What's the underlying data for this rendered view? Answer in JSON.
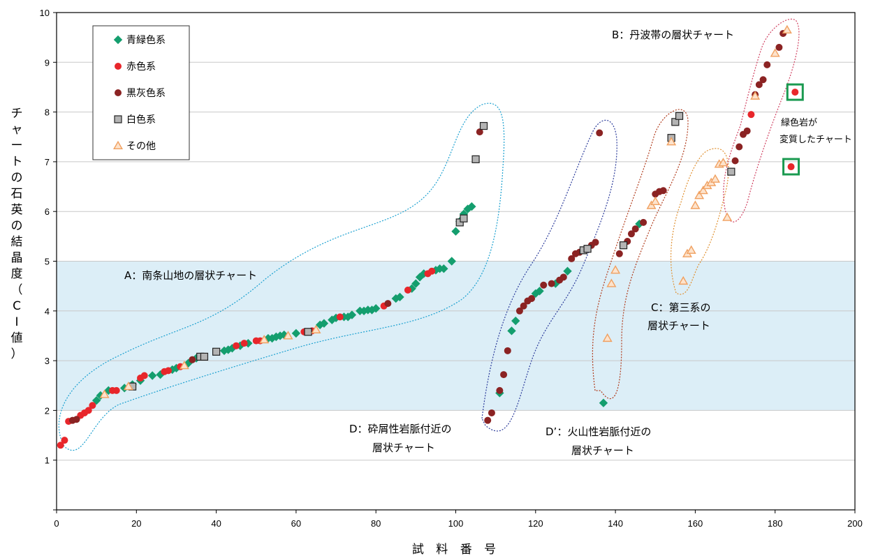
{
  "chart_data": {
    "type": "scatter",
    "xlabel": "試 料 番 号",
    "ylabel": "チャートの石英の結晶度（CI値）",
    "xlim": [
      0,
      200
    ],
    "ylim": [
      0,
      10
    ],
    "x_ticks": [
      "0",
      "20",
      "40",
      "60",
      "80",
      "100",
      "120",
      "140",
      "160",
      "180",
      "200"
    ],
    "y_ticks": [
      "1",
      "2",
      "3",
      "4",
      "5",
      "6",
      "7",
      "8",
      "9",
      "10"
    ],
    "grid": true,
    "legend_position": "top-left",
    "shaded_band": {
      "y_from": 2,
      "y_to": 5,
      "color": "#dceef7"
    },
    "series": [
      {
        "name": "青緑色系",
        "marker": "diamond",
        "color": "#149e6e",
        "points": [
          [
            10,
            2.2
          ],
          [
            11,
            2.3
          ],
          [
            13,
            2.4
          ],
          [
            17,
            2.45
          ],
          [
            19,
            2.52
          ],
          [
            21,
            2.6
          ],
          [
            24,
            2.7
          ],
          [
            26,
            2.72
          ],
          [
            29,
            2.82
          ],
          [
            30,
            2.85
          ],
          [
            33,
            2.95
          ],
          [
            35,
            3.05
          ],
          [
            42,
            3.2
          ],
          [
            43,
            3.22
          ],
          [
            44,
            3.25
          ],
          [
            46,
            3.3
          ],
          [
            48,
            3.35
          ],
          [
            53,
            3.45
          ],
          [
            54,
            3.45
          ],
          [
            55,
            3.48
          ],
          [
            56,
            3.5
          ],
          [
            57,
            3.52
          ],
          [
            60,
            3.55
          ],
          [
            66,
            3.72
          ],
          [
            67,
            3.75
          ],
          [
            69,
            3.82
          ],
          [
            70,
            3.86
          ],
          [
            72,
            3.88
          ],
          [
            73,
            3.88
          ],
          [
            74,
            3.92
          ],
          [
            76,
            4.0
          ],
          [
            77,
            4.0
          ],
          [
            78,
            4.02
          ],
          [
            79,
            4.02
          ],
          [
            80,
            4.05
          ],
          [
            85,
            4.25
          ],
          [
            86,
            4.28
          ],
          [
            89,
            4.45
          ],
          [
            90,
            4.55
          ],
          [
            91,
            4.68
          ],
          [
            92,
            4.75
          ],
          [
            95,
            4.82
          ],
          [
            96,
            4.85
          ],
          [
            97,
            4.85
          ],
          [
            99,
            5.0
          ],
          [
            100,
            5.6
          ],
          [
            101,
            5.8
          ],
          [
            102,
            5.95
          ],
          [
            103,
            6.05
          ],
          [
            104,
            6.1
          ],
          [
            111,
            2.35
          ],
          [
            114,
            3.6
          ],
          [
            115,
            3.8
          ],
          [
            120,
            4.35
          ],
          [
            121,
            4.4
          ],
          [
            125,
            4.55
          ],
          [
            128,
            4.8
          ],
          [
            137,
            2.15
          ],
          [
            146,
            5.75
          ]
        ]
      },
      {
        "name": "赤色系",
        "marker": "circle",
        "color": "#e8262b",
        "points": [
          [
            1,
            1.3
          ],
          [
            2,
            1.4
          ],
          [
            3,
            1.78
          ],
          [
            6,
            1.9
          ],
          [
            7,
            1.95
          ],
          [
            8,
            2.0
          ],
          [
            9,
            2.1
          ],
          [
            14,
            2.4
          ],
          [
            15,
            2.4
          ],
          [
            21,
            2.65
          ],
          [
            22,
            2.7
          ],
          [
            27,
            2.78
          ],
          [
            28,
            2.8
          ],
          [
            31,
            2.88
          ],
          [
            45,
            3.3
          ],
          [
            47,
            3.35
          ],
          [
            50,
            3.4
          ],
          [
            51,
            3.4
          ],
          [
            62,
            3.58
          ],
          [
            64,
            3.6
          ],
          [
            71,
            3.88
          ],
          [
            82,
            4.1
          ],
          [
            88,
            4.42
          ],
          [
            93,
            4.75
          ],
          [
            94,
            4.8
          ],
          [
            174,
            7.95
          ],
          [
            185,
            8.4
          ],
          [
            184,
            6.9
          ]
        ]
      },
      {
        "name": "黒灰色系",
        "marker": "circle",
        "color": "#8b2323",
        "points": [
          [
            4,
            1.8
          ],
          [
            5,
            1.82
          ],
          [
            34,
            3.02
          ],
          [
            83,
            4.15
          ],
          [
            106,
            7.6
          ],
          [
            108,
            1.8
          ],
          [
            109,
            1.95
          ],
          [
            111,
            2.4
          ],
          [
            112,
            2.72
          ],
          [
            113,
            3.2
          ],
          [
            116,
            4.0
          ],
          [
            117,
            4.1
          ],
          [
            118,
            4.2
          ],
          [
            119,
            4.25
          ],
          [
            122,
            4.52
          ],
          [
            124,
            4.55
          ],
          [
            126,
            4.62
          ],
          [
            127,
            4.68
          ],
          [
            129,
            5.05
          ],
          [
            130,
            5.15
          ],
          [
            131,
            5.18
          ],
          [
            134,
            5.32
          ],
          [
            135,
            5.38
          ],
          [
            136,
            7.58
          ],
          [
            141,
            5.15
          ],
          [
            143,
            5.4
          ],
          [
            144,
            5.55
          ],
          [
            145,
            5.65
          ],
          [
            147,
            5.78
          ],
          [
            150,
            6.35
          ],
          [
            151,
            6.4
          ],
          [
            152,
            6.42
          ],
          [
            170,
            7.02
          ],
          [
            171,
            7.3
          ],
          [
            172,
            7.55
          ],
          [
            173,
            7.62
          ],
          [
            175,
            8.35
          ],
          [
            176,
            8.55
          ],
          [
            177,
            8.65
          ],
          [
            178,
            8.95
          ],
          [
            181,
            9.3
          ],
          [
            182,
            9.58
          ]
        ]
      },
      {
        "name": "白色系",
        "marker": "square",
        "color": "#b4b4b4",
        "points": [
          [
            19,
            2.48
          ],
          [
            36,
            3.08
          ],
          [
            37,
            3.08
          ],
          [
            40,
            3.18
          ],
          [
            63,
            3.58
          ],
          [
            101,
            5.78
          ],
          [
            102,
            5.86
          ],
          [
            105,
            7.05
          ],
          [
            107,
            7.72
          ],
          [
            132,
            5.22
          ],
          [
            133,
            5.25
          ],
          [
            142,
            5.32
          ],
          [
            154,
            7.48
          ],
          [
            155,
            7.8
          ],
          [
            156,
            7.92
          ],
          [
            169,
            6.8
          ]
        ]
      },
      {
        "name": "その他",
        "marker": "triangle",
        "color": "#f0a060",
        "points": [
          [
            12,
            2.32
          ],
          [
            18,
            2.48
          ],
          [
            32,
            2.9
          ],
          [
            52,
            3.42
          ],
          [
            58,
            3.5
          ],
          [
            65,
            3.62
          ],
          [
            138,
            3.45
          ],
          [
            139,
            4.55
          ],
          [
            140,
            4.82
          ],
          [
            149,
            6.12
          ],
          [
            150,
            6.2
          ],
          [
            154,
            7.4
          ],
          [
            157,
            4.6
          ],
          [
            158,
            5.15
          ],
          [
            159,
            5.22
          ],
          [
            160,
            6.12
          ],
          [
            161,
            6.32
          ],
          [
            162,
            6.42
          ],
          [
            163,
            6.52
          ],
          [
            164,
            6.58
          ],
          [
            165,
            6.65
          ],
          [
            166,
            6.95
          ],
          [
            167,
            6.98
          ],
          [
            168,
            5.88
          ],
          [
            175,
            8.32
          ],
          [
            180,
            9.18
          ],
          [
            183,
            9.65
          ]
        ]
      }
    ],
    "annotations": [
      "A：南条山地の層状チャート",
      "B：丹波帯の層状チャート",
      "C：第三系の",
      "層状チャート",
      "D：砕屑性岩脈付近の",
      "層状チャート",
      "D’：火山性岩脈付近の",
      "層状チャート",
      "緑色岩が",
      "変質したチャート"
    ]
  }
}
